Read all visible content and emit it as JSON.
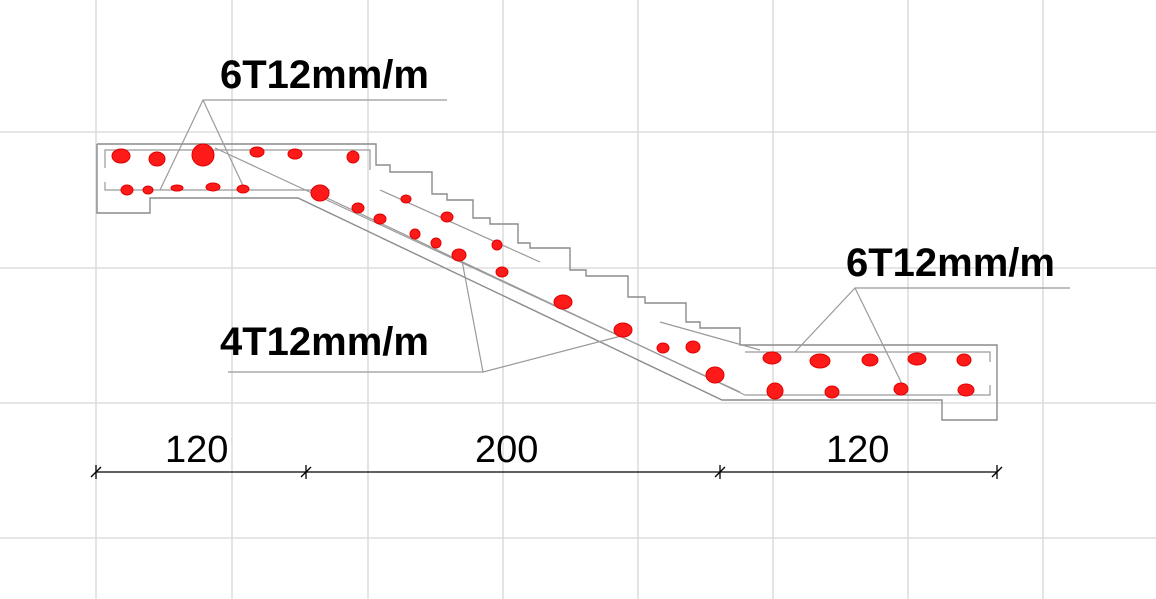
{
  "labels": {
    "top_left_rebar": "6T12mm/m",
    "right_rebar": "6T12mm/m",
    "inclined_rebar": "4T12mm/m"
  },
  "dimensions": [
    "120",
    "200",
    "120"
  ],
  "colors": {
    "grid": "#d6d6d6",
    "outline": "#8c8c8c",
    "rebar": "#ff1a1a",
    "text": "#000000"
  }
}
